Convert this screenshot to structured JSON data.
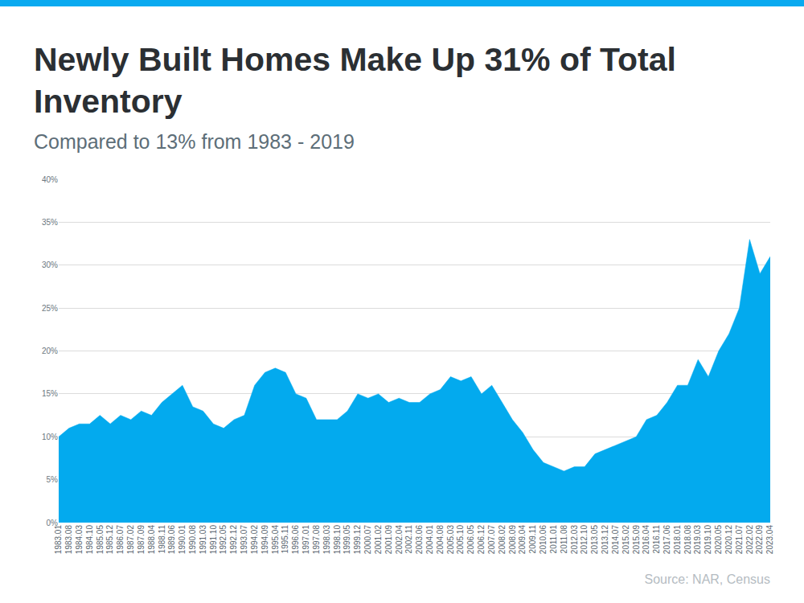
{
  "chart_data": {
    "type": "area",
    "title": "Newly Built Homes Make Up 31% of Total Inventory",
    "subtitle": "Compared to 13% from 1983 - 2019",
    "annotations": [
      "Source: NAR, Census"
    ],
    "categories": [
      "1983.01",
      "1983.08",
      "1984.03",
      "1984.10",
      "1985.05",
      "1985.12",
      "1986.07",
      "1987.02",
      "1987.09",
      "1988.04",
      "1988.11",
      "1989.06",
      "1990.01",
      "1990.08",
      "1991.03",
      "1991.10",
      "1992.05",
      "1992.12",
      "1993.07",
      "1994.02",
      "1994.09",
      "1995.04",
      "1995.11",
      "1996.06",
      "1997.01",
      "1997.08",
      "1998.03",
      "1998.10",
      "1999.05",
      "1999.12",
      "2000.07",
      "2001.02",
      "2001.09",
      "2002.04",
      "2002.11",
      "2003.06",
      "2004.01",
      "2004.08",
      "2005.03",
      "2005.10",
      "2006.05",
      "2006.12",
      "2007.07",
      "2008.02",
      "2008.09",
      "2009.04",
      "2009.11",
      "2010.06",
      "2011.01",
      "2011.08",
      "2012.03",
      "2012.10",
      "2013.05",
      "2013.12",
      "2014.07",
      "2015.02",
      "2015.09",
      "2016.04",
      "2016.11",
      "2017.06",
      "2018.01",
      "2018.08",
      "2019.03",
      "2019.10",
      "2020.05",
      "2020.12",
      "2021.07",
      "2022.02",
      "2022.09",
      "2023.04"
    ],
    "values": [
      10,
      11,
      11.5,
      11.5,
      12.5,
      11.5,
      12.5,
      12,
      13,
      12.5,
      14,
      15,
      16,
      13.5,
      13,
      11.5,
      11,
      12,
      12.5,
      16,
      17.5,
      18,
      17.5,
      15,
      14.5,
      12,
      12,
      12,
      13,
      15,
      14.5,
      15,
      14,
      14.5,
      14,
      14,
      15,
      15.5,
      17,
      16.5,
      17,
      15,
      16,
      14,
      12,
      10.5,
      8.5,
      7,
      6.5,
      6,
      6.5,
      6.5,
      8,
      8.5,
      9,
      9.5,
      10,
      12,
      12.5,
      14,
      16,
      16,
      19,
      17,
      20,
      22,
      25,
      33,
      29,
      31
    ],
    "color": "#03aaee",
    "ylim": [
      0,
      40
    ],
    "yticks": [
      {
        "value": 0,
        "label": "0%"
      },
      {
        "value": 5,
        "label": "5%"
      },
      {
        "value": 10,
        "label": "10%"
      },
      {
        "value": 15,
        "label": "15%"
      },
      {
        "value": 20,
        "label": "20%"
      },
      {
        "value": 25,
        "label": "25%"
      },
      {
        "value": 30,
        "label": "30%"
      },
      {
        "value": 35,
        "label": "35%"
      },
      {
        "value": 40,
        "label": "40%"
      }
    ],
    "grid": true
  }
}
